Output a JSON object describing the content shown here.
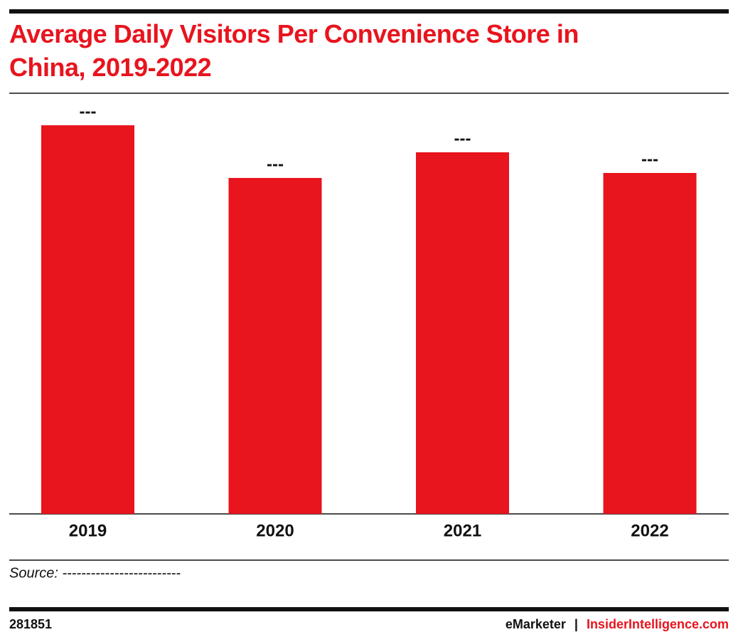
{
  "chart_data": {
    "type": "bar",
    "title": "Average Daily Visitors Per Convenience Store in China, 2019-2022",
    "categories": [
      "2019",
      "2020",
      "2021",
      "2022"
    ],
    "values": [
      546,
      472,
      508,
      479
    ],
    "value_labels": [
      "---",
      "---",
      "---",
      "---"
    ],
    "color": "#e8141e",
    "ylim": [
      0,
      590
    ],
    "source": "Source: -------------------------",
    "footer": {
      "id": "281851",
      "brand": "eMarketer",
      "separator": "|",
      "site": "InsiderIntelligence.com"
    }
  }
}
